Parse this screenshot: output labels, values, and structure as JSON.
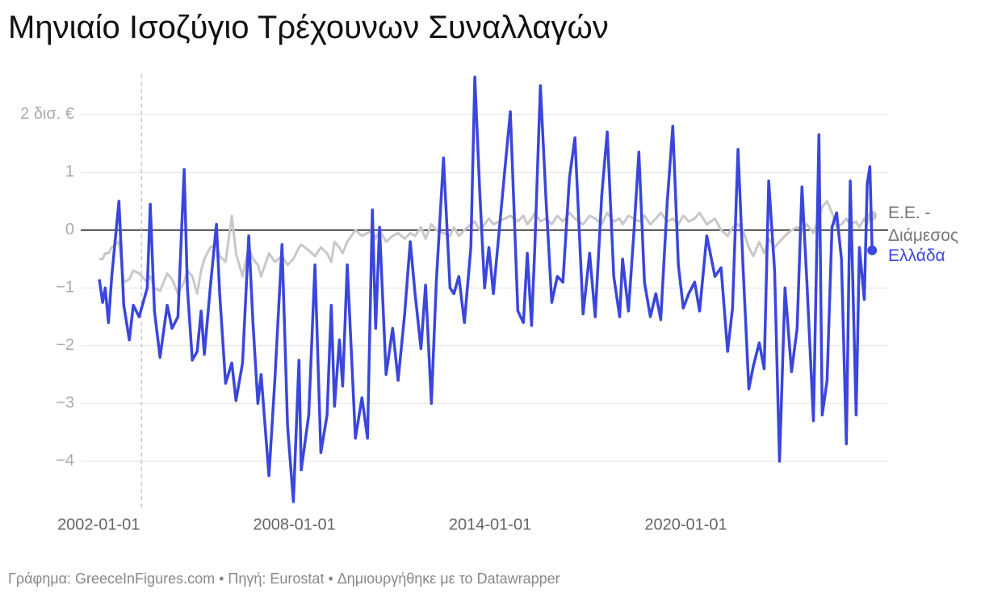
{
  "chart_data": {
    "type": "line",
    "title": "Μηνιαίο Ισοζύγιο Τρέχουνων Συναλλαγών",
    "source": "Γράφημα: GreeceInFigures.com • Πηγή: Eurostat • Δημιουργήθηκε με το Datawrapper",
    "x": [
      2002.02,
      2002.12,
      2002.2,
      2002.3,
      2002.4,
      2002.62,
      2002.77,
      2002.94,
      2003.06,
      2003.24,
      2003.49,
      2003.58,
      2003.71,
      2003.88,
      2004.1,
      2004.25,
      2004.43,
      2004.62,
      2004.72,
      2004.87,
      2005.02,
      2005.14,
      2005.24,
      2005.42,
      2005.61,
      2005.71,
      2005.89,
      2006.08,
      2006.21,
      2006.41,
      2006.6,
      2006.73,
      2006.88,
      2006.98,
      2007.22,
      2007.4,
      2007.62,
      2007.79,
      2007.97,
      2008.14,
      2008.21,
      2008.44,
      2008.63,
      2008.81,
      2009.0,
      2009.13,
      2009.23,
      2009.38,
      2009.48,
      2009.62,
      2009.87,
      2010.07,
      2010.24,
      2010.39,
      2010.49,
      2010.61,
      2010.81,
      2011.01,
      2011.18,
      2011.38,
      2011.55,
      2011.7,
      2011.88,
      2012.02,
      2012.2,
      2012.35,
      2012.57,
      2012.77,
      2012.89,
      2013.04,
      2013.21,
      2013.41,
      2013.53,
      2013.68,
      2013.83,
      2013.96,
      2014.1,
      2014.45,
      2014.62,
      2014.85,
      2015.02,
      2015.14,
      2015.27,
      2015.37,
      2015.54,
      2015.71,
      2015.89,
      2016.06,
      2016.23,
      2016.43,
      2016.6,
      2016.85,
      2017.05,
      2017.22,
      2017.42,
      2017.59,
      2017.79,
      2017.97,
      2018.06,
      2018.24,
      2018.41,
      2018.56,
      2018.73,
      2018.91,
      2019.08,
      2019.23,
      2019.43,
      2019.6,
      2019.77,
      2019.92,
      2020.09,
      2020.27,
      2020.42,
      2020.64,
      2020.89,
      2021.08,
      2021.28,
      2021.43,
      2021.6,
      2021.75,
      2021.93,
      2022.07,
      2022.25,
      2022.4,
      2022.54,
      2022.72,
      2022.87,
      2023.04,
      2023.24,
      2023.41,
      2023.56,
      2023.71,
      2023.91,
      2024.08,
      2024.18,
      2024.33,
      2024.48,
      2024.62,
      2024.77,
      2024.92,
      2025.04,
      2025.22,
      2025.32,
      2025.47,
      2025.56,
      2025.64,
      2025.71
    ],
    "series": [
      {
        "name": "Ε.Ε. - Διάμεσος",
        "color": "#c8c8c8",
        "values": [
          -0.5,
          -0.5,
          -0.4,
          -0.4,
          -0.3,
          -0.2,
          -0.9,
          -0.85,
          -0.7,
          -0.75,
          -0.9,
          -0.8,
          -1.0,
          -1.05,
          -0.75,
          -0.85,
          -1.1,
          -0.9,
          -0.7,
          -0.8,
          -1.1,
          -0.7,
          -0.5,
          -0.3,
          -0.25,
          -0.45,
          -0.55,
          0.25,
          -0.4,
          -0.8,
          -0.3,
          -0.5,
          -0.6,
          -0.8,
          -0.4,
          -0.55,
          -0.45,
          -0.6,
          -0.5,
          -0.3,
          -0.25,
          -0.35,
          -0.45,
          -0.3,
          -0.4,
          -0.55,
          -0.2,
          -0.3,
          -0.4,
          -0.2,
          0.0,
          -0.1,
          -0.05,
          0.0,
          -0.15,
          0.0,
          -0.2,
          -0.1,
          -0.05,
          -0.15,
          -0.05,
          -0.1,
          0.05,
          -0.15,
          0.1,
          0.0,
          -0.05,
          -0.1,
          0.05,
          -0.1,
          0.0,
          0.1,
          0.15,
          0.0,
          0.1,
          0.2,
          0.1,
          0.2,
          0.25,
          0.15,
          0.25,
          0.1,
          0.2,
          0.3,
          0.15,
          0.2,
          0.1,
          0.25,
          0.15,
          0.3,
          0.2,
          0.1,
          0.25,
          0.2,
          0.1,
          0.3,
          0.15,
          0.2,
          0.1,
          0.25,
          0.2,
          0.15,
          0.25,
          0.1,
          0.2,
          0.3,
          0.15,
          0.2,
          0.1,
          0.25,
          0.15,
          0.2,
          0.3,
          0.1,
          0.2,
          0.0,
          -0.1,
          0.05,
          0.1,
          0.0,
          -0.3,
          -0.45,
          -0.2,
          -0.4,
          -0.15,
          -0.3,
          -0.2,
          -0.1,
          0.0,
          0.05,
          0.0,
          0.1,
          -0.05,
          0.2,
          0.4,
          0.5,
          0.3,
          0.05,
          0.1,
          0.2,
          0.1,
          0.15,
          0.05,
          0.2,
          0.1,
          0.25,
          0.25
        ]
      },
      {
        "name": "Ελλάδα",
        "color": "#3a46dc",
        "values": [
          -0.85,
          -1.25,
          -1.0,
          -1.6,
          -0.8,
          0.5,
          -1.3,
          -1.9,
          -1.3,
          -1.5,
          -1.0,
          0.45,
          -1.4,
          -2.2,
          -1.3,
          -1.7,
          -1.5,
          1.05,
          -1.0,
          -2.25,
          -2.1,
          -1.4,
          -2.15,
          -1.0,
          0.1,
          -1.1,
          -2.65,
          -2.3,
          -2.95,
          -2.3,
          -0.1,
          -1.6,
          -3.0,
          -2.5,
          -4.25,
          -2.6,
          -0.25,
          -3.4,
          -4.7,
          -2.25,
          -4.15,
          -3.2,
          -0.6,
          -3.85,
          -3.2,
          -1.3,
          -3.05,
          -1.9,
          -2.7,
          -0.6,
          -3.6,
          -2.9,
          -3.6,
          0.35,
          -1.7,
          0.05,
          -2.5,
          -1.7,
          -2.6,
          -1.45,
          -0.2,
          -1.1,
          -2.05,
          -0.95,
          -3.0,
          -0.9,
          1.25,
          -1.0,
          -1.1,
          -0.8,
          -1.6,
          -0.3,
          2.65,
          0.7,
          -1.0,
          -0.3,
          -1.1,
          1.05,
          2.05,
          -1.4,
          -1.6,
          -0.4,
          -1.65,
          -0.3,
          2.5,
          0.55,
          -1.25,
          -0.8,
          -0.9,
          0.9,
          1.6,
          -1.45,
          -0.4,
          -1.5,
          0.6,
          1.7,
          -0.8,
          -1.5,
          -0.5,
          -1.4,
          0.0,
          1.35,
          -0.9,
          -1.5,
          -1.1,
          -1.55,
          0.5,
          1.8,
          -0.6,
          -1.35,
          -1.1,
          -0.9,
          -1.4,
          -0.1,
          -0.8,
          -0.65,
          -2.1,
          -1.35,
          1.4,
          -0.6,
          -2.75,
          -2.35,
          -1.95,
          -2.4,
          0.85,
          -0.7,
          -4.0,
          -1.0,
          -2.45,
          -1.7,
          0.75,
          -0.9,
          -3.3,
          1.65,
          -3.2,
          -2.6,
          0.05,
          0.3,
          -0.5,
          -3.7,
          0.85,
          -3.2,
          -0.3,
          -1.2,
          0.8,
          1.1,
          -0.35
        ]
      }
    ],
    "vline_x": 2003.31,
    "xlim": [
      2001.45,
      2026.2
    ],
    "xticks": [
      {
        "value": 2002,
        "label": "2002-01-01"
      },
      {
        "value": 2008,
        "label": "2008-01-01"
      },
      {
        "value": 2014,
        "label": "2014-01-01"
      },
      {
        "value": 2020,
        "label": "2020-01-01"
      }
    ],
    "ylim": [
      -4.8,
      2.85
    ],
    "yticks": [
      {
        "value": -4,
        "label": "−4"
      },
      {
        "value": -3,
        "label": "−3"
      },
      {
        "value": -2,
        "label": "−2"
      },
      {
        "value": -1,
        "label": "−1"
      },
      0,
      1,
      {
        "value": 2,
        "label": "2 δισ. €"
      }
    ],
    "grid": true
  }
}
